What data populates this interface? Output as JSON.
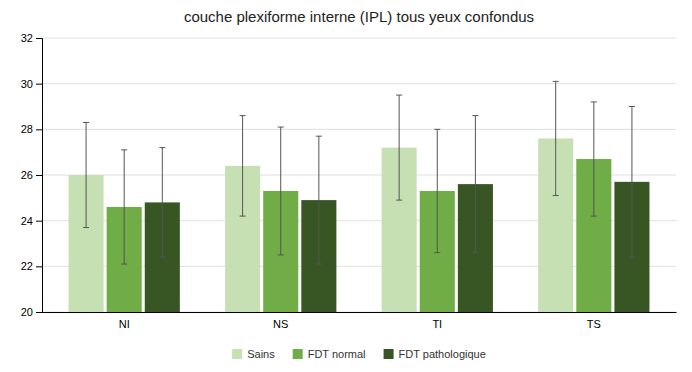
{
  "chart_data": {
    "type": "bar",
    "title": "couche plexiforme interne (IPL) tous yeux confondus",
    "categories": [
      "NI",
      "NS",
      "TI",
      "TS"
    ],
    "series": [
      {
        "name": "Sains",
        "color": "#c6e0b4",
        "values": [
          26.0,
          26.4,
          27.2,
          27.6
        ],
        "errors": [
          2.3,
          2.2,
          2.3,
          2.5
        ]
      },
      {
        "name": "FDT normal",
        "color": "#70ad47",
        "values": [
          24.6,
          25.3,
          25.3,
          26.7
        ],
        "errors": [
          2.5,
          2.8,
          2.7,
          2.5
        ]
      },
      {
        "name": "FDT pathologique",
        "color": "#375623",
        "values": [
          24.8,
          24.9,
          25.6,
          25.7
        ],
        "errors": [
          2.4,
          2.8,
          3.0,
          3.3
        ]
      }
    ],
    "ylim": [
      20,
      32
    ],
    "yticks": [
      20,
      22,
      24,
      26,
      28,
      30,
      32
    ],
    "grid": true,
    "legend": "bottom"
  }
}
